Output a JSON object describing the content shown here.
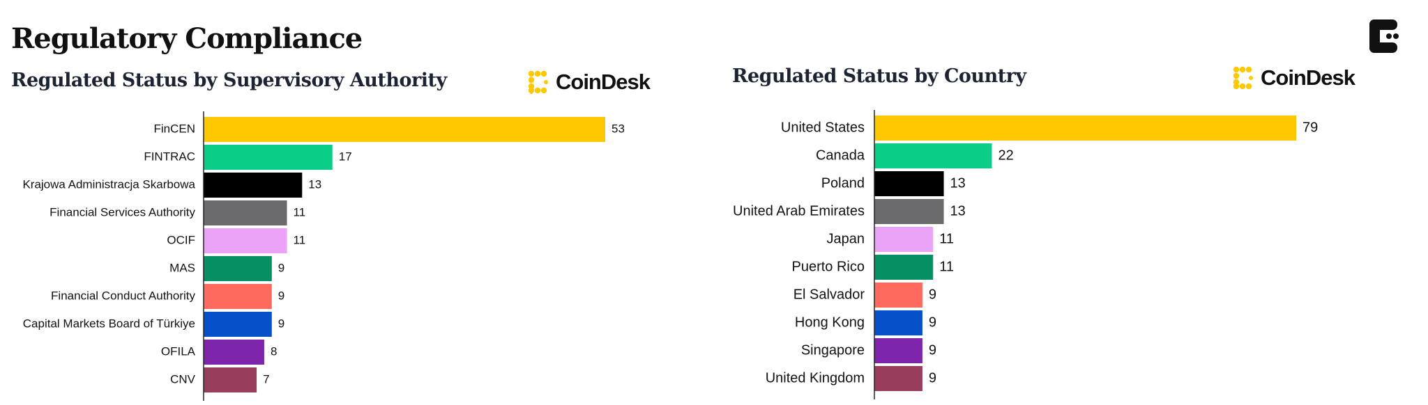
{
  "page": {
    "title": "Regulatory Compliance",
    "brand_name": "CoinDesk"
  },
  "colors": {
    "palette": [
      "#FFC800",
      "#0ACD88",
      "#000000",
      "#6B6A6C",
      "#EBA3F8",
      "#068F63",
      "#FF6A5E",
      "#0650C9",
      "#7C25AB",
      "#983D5B"
    ],
    "axis": "#222222",
    "brand_yellow": "#FFC800"
  },
  "chart_data": [
    {
      "type": "bar",
      "orientation": "horizontal",
      "title": "Regulated Status by Supervisory Authority",
      "categories": [
        "FinCEN",
        "FINTRAC",
        "Krajowa Administracja Skarbowa",
        "Financial Services Authority",
        "OCIF",
        "MAS",
        "Financial Conduct Authority",
        "Capital Markets Board of Türkiye",
        "OFILA",
        "CNV"
      ],
      "values": [
        53,
        17,
        13,
        11,
        11,
        9,
        9,
        9,
        8,
        7
      ],
      "data_labels": [
        "53",
        "17",
        "13",
        "11",
        "11",
        "9",
        "9",
        "9",
        "8",
        "7"
      ],
      "xlim": [
        0,
        53
      ],
      "grid": false,
      "legend": "none"
    },
    {
      "type": "bar",
      "orientation": "horizontal",
      "title": "Regulated Status by Country",
      "categories": [
        "United States",
        "Canada",
        "Poland",
        "United Arab Emirates",
        "Japan",
        "Puerto Rico",
        "El Salvador",
        "Hong Kong",
        "Singapore",
        "United Kingdom"
      ],
      "values": [
        79,
        22,
        13,
        13,
        11,
        11,
        9,
        9,
        9,
        9
      ],
      "data_labels": [
        "79",
        "22",
        "13",
        "13",
        "11",
        "11",
        "9",
        "9",
        "9",
        "9"
      ],
      "xlim": [
        0,
        79
      ],
      "grid": false,
      "legend": "none"
    }
  ]
}
